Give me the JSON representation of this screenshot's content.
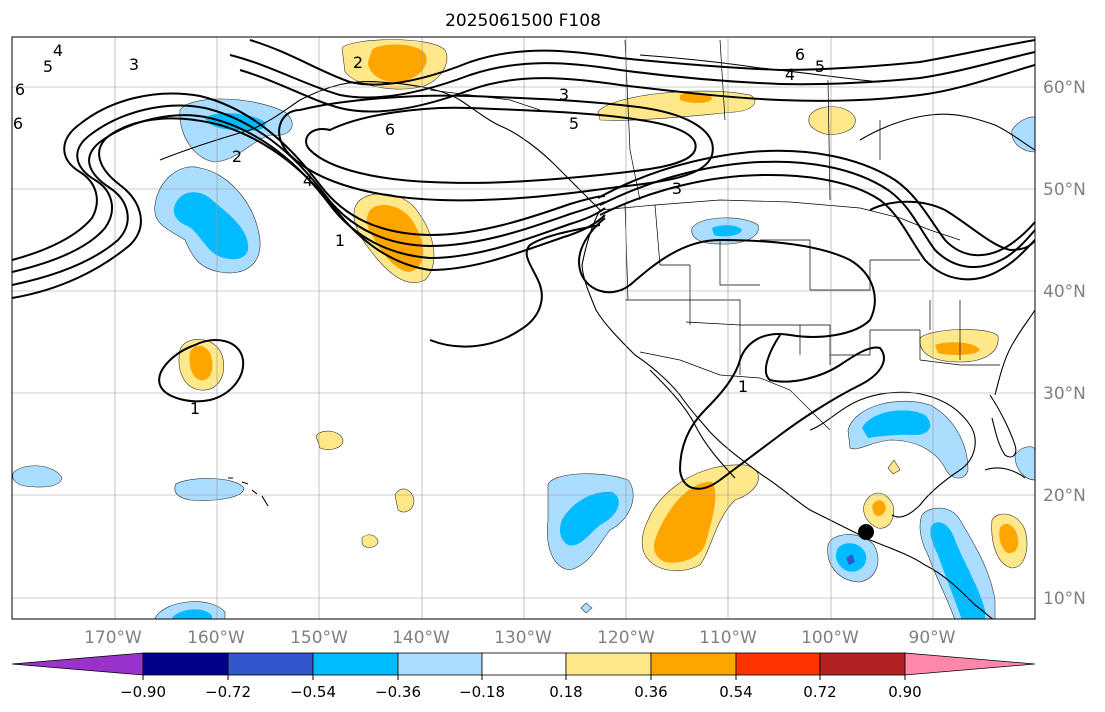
{
  "figure": {
    "title": "2025061500 F108"
  },
  "map": {
    "lon_labels": [
      "170°W",
      "160°W",
      "150°W",
      "140°W",
      "130°W",
      "120°W",
      "110°W",
      "100°W",
      "90°W"
    ],
    "lat_labels": [
      "60°N",
      "50°N",
      "40°N",
      "30°N",
      "20°N",
      "10°N"
    ],
    "marker": "black-dot",
    "contour_labels": [
      "4",
      "5",
      "6",
      "6",
      "3",
      "2",
      "3",
      "5",
      "6",
      "4",
      "6",
      "5",
      "4",
      "2",
      "1",
      "3",
      "1",
      "1"
    ]
  },
  "colorbar": {
    "tick_labels": [
      "−0.90",
      "−0.72",
      "−0.54",
      "−0.36",
      "−0.18",
      "0.18",
      "0.36",
      "0.54",
      "0.72",
      "0.90"
    ],
    "colors": [
      "#9933cc",
      "#000088",
      "#3355cc",
      "#00bbff",
      "#aaddff",
      "#ffffff",
      "#ffe88a",
      "#ffa500",
      "#ff3300",
      "#b22222",
      "#ff88aa"
    ]
  },
  "colors": {
    "light_blue": "#aaddff",
    "blue": "#00bbff",
    "dark_blue": "#3355cc",
    "yellow": "#ffe88a",
    "orange": "#ffa500",
    "grid": "#999999",
    "axis_label": "#808080"
  }
}
